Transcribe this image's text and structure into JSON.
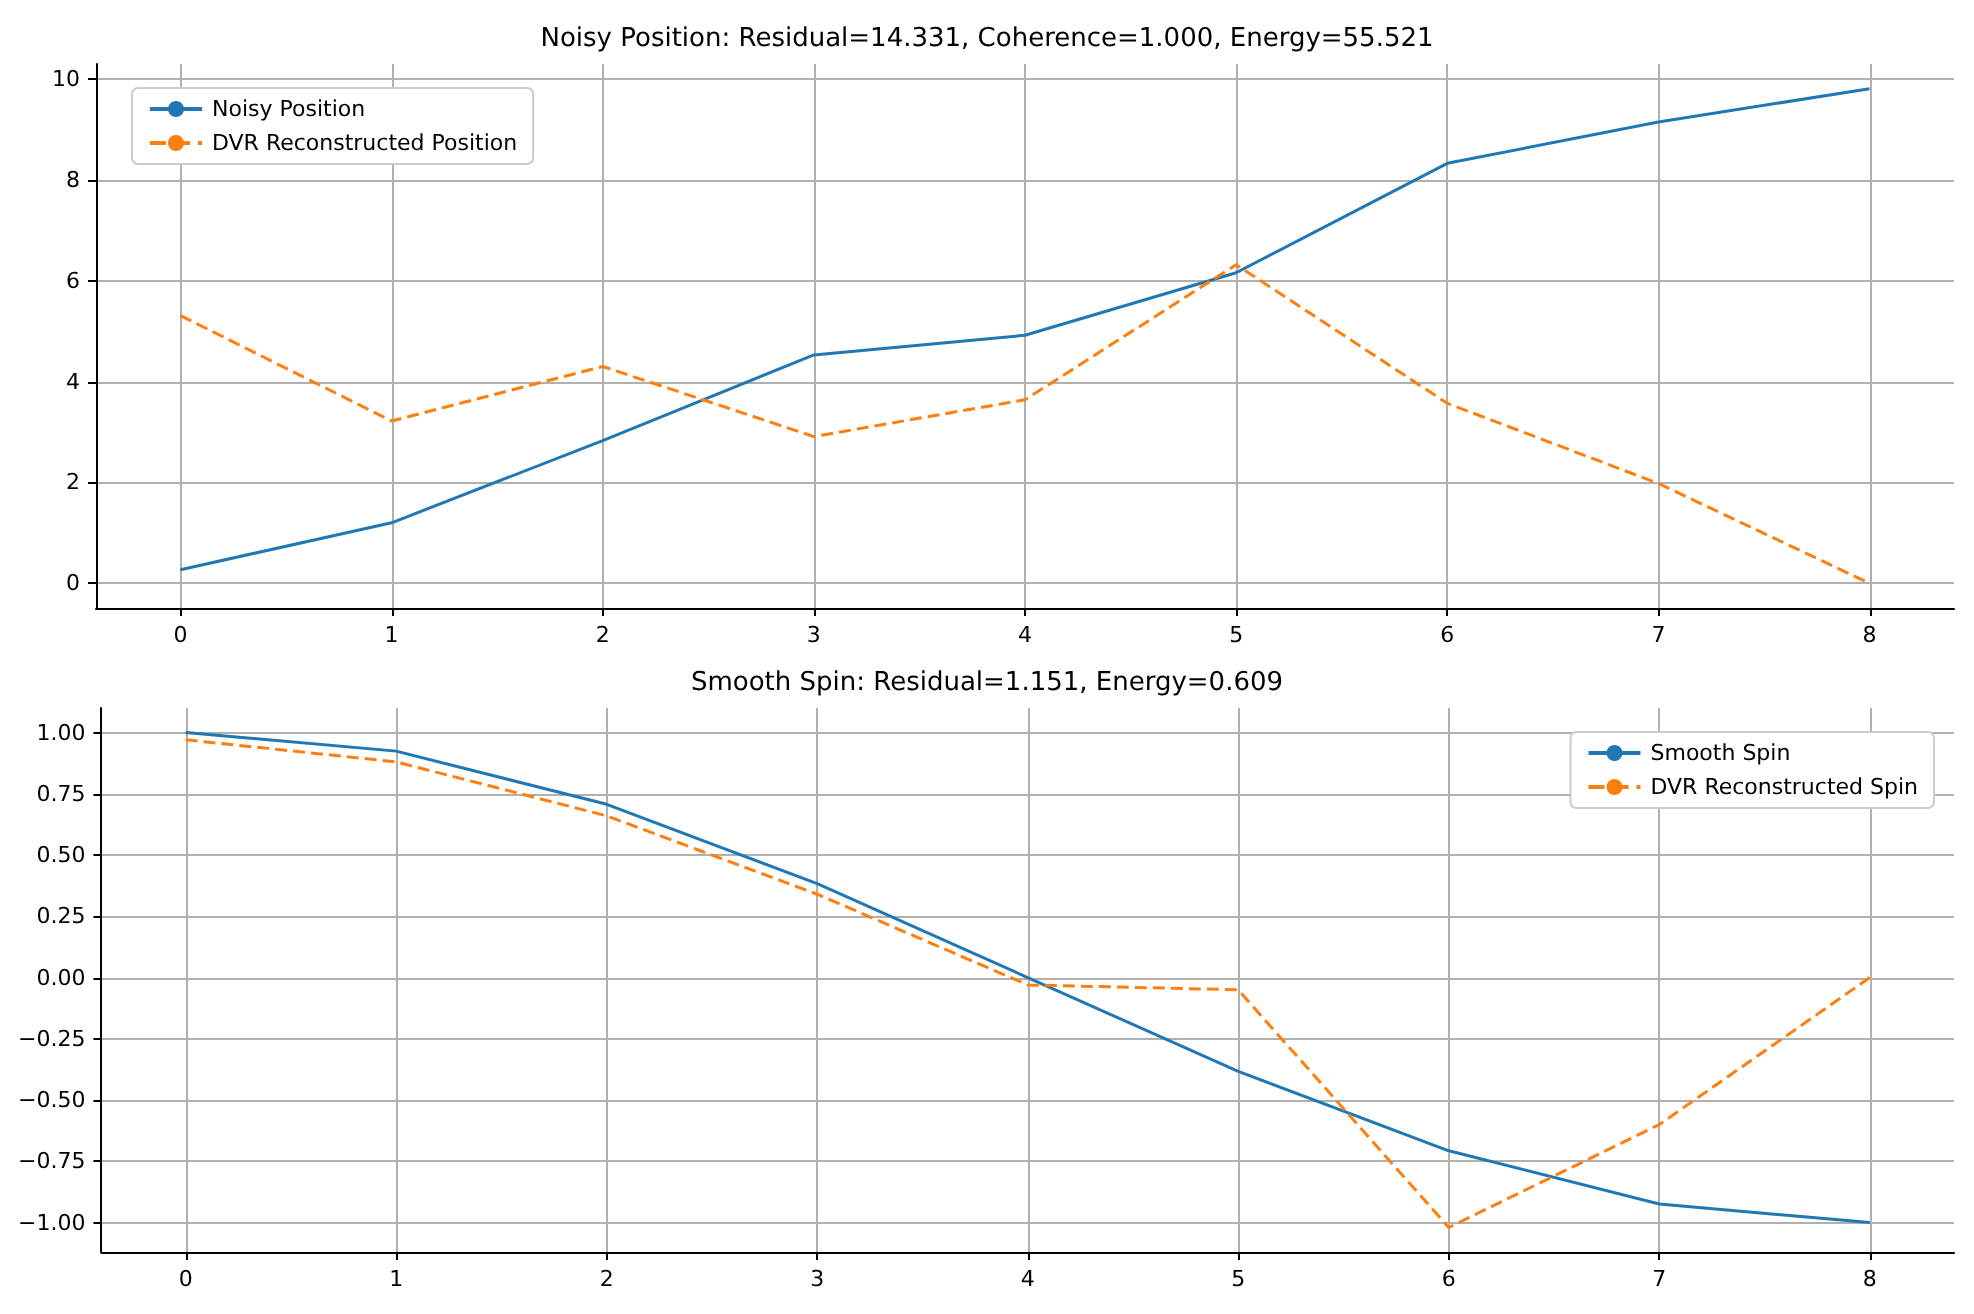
{
  "chart_data": [
    {
      "type": "line",
      "title": "Noisy Position: Residual=14.331, Coherence=1.000, Energy=55.521",
      "x": [
        0,
        1,
        2,
        3,
        4,
        5,
        6,
        7,
        8
      ],
      "xlim": [
        -0.4,
        8.4
      ],
      "xticks": [
        0,
        1,
        2,
        3,
        4,
        5,
        6,
        7,
        8
      ],
      "ylim": [
        -0.49,
        10.3
      ],
      "yticks": [
        0,
        2,
        4,
        6,
        8,
        10
      ],
      "grid": true,
      "legend": "top left",
      "marker": "none",
      "series": [
        {
          "name": "Noisy Position",
          "color": "#1f77b4",
          "line_style": "solid",
          "values": [
            0.27,
            1.2,
            2.83,
            4.53,
            4.92,
            6.16,
            8.33,
            9.15,
            9.81
          ]
        },
        {
          "name": "DVR Reconstructed Position",
          "color": "#ff7f0e",
          "line_style": "dashed",
          "values": [
            5.31,
            3.22,
            4.3,
            2.91,
            3.64,
            6.32,
            3.57,
            1.98,
            0.0
          ]
        }
      ]
    },
    {
      "type": "line",
      "title": "Smooth Spin: Residual=1.151, Energy=0.609",
      "x": [
        0,
        1,
        2,
        3,
        4,
        5,
        6,
        7,
        8
      ],
      "xlim": [
        -0.4,
        8.4
      ],
      "xticks": [
        0,
        1,
        2,
        3,
        4,
        5,
        6,
        7,
        8
      ],
      "ylim": [
        -1.12,
        1.1
      ],
      "yticks": [
        {
          "value": -1,
          "label": "−1.00"
        },
        {
          "value": -0.75,
          "label": "−0.75"
        },
        {
          "value": -0.5,
          "label": "−0.50"
        },
        {
          "value": -0.25,
          "label": "−0.25"
        },
        {
          "value": 0,
          "label": "0.00"
        },
        {
          "value": 0.25,
          "label": "0.25"
        },
        {
          "value": 0.5,
          "label": "0.50"
        },
        {
          "value": 0.75,
          "label": "0.75"
        },
        {
          "value": 1,
          "label": "1.00"
        }
      ],
      "grid": true,
      "legend": "top right",
      "marker": "none",
      "series": [
        {
          "name": "Smooth Spin",
          "color": "#1f77b4",
          "line_style": "solid",
          "values": [
            1.0,
            0.924,
            0.707,
            0.383,
            0.0,
            -0.383,
            -0.707,
            -0.924,
            -1.0
          ]
        },
        {
          "name": "DVR Reconstructed Spin",
          "color": "#ff7f0e",
          "line_style": "dashed",
          "values": [
            0.97,
            0.88,
            0.66,
            0.34,
            -0.03,
            -0.05,
            -1.02,
            -0.6,
            0.0
          ]
        }
      ]
    }
  ]
}
